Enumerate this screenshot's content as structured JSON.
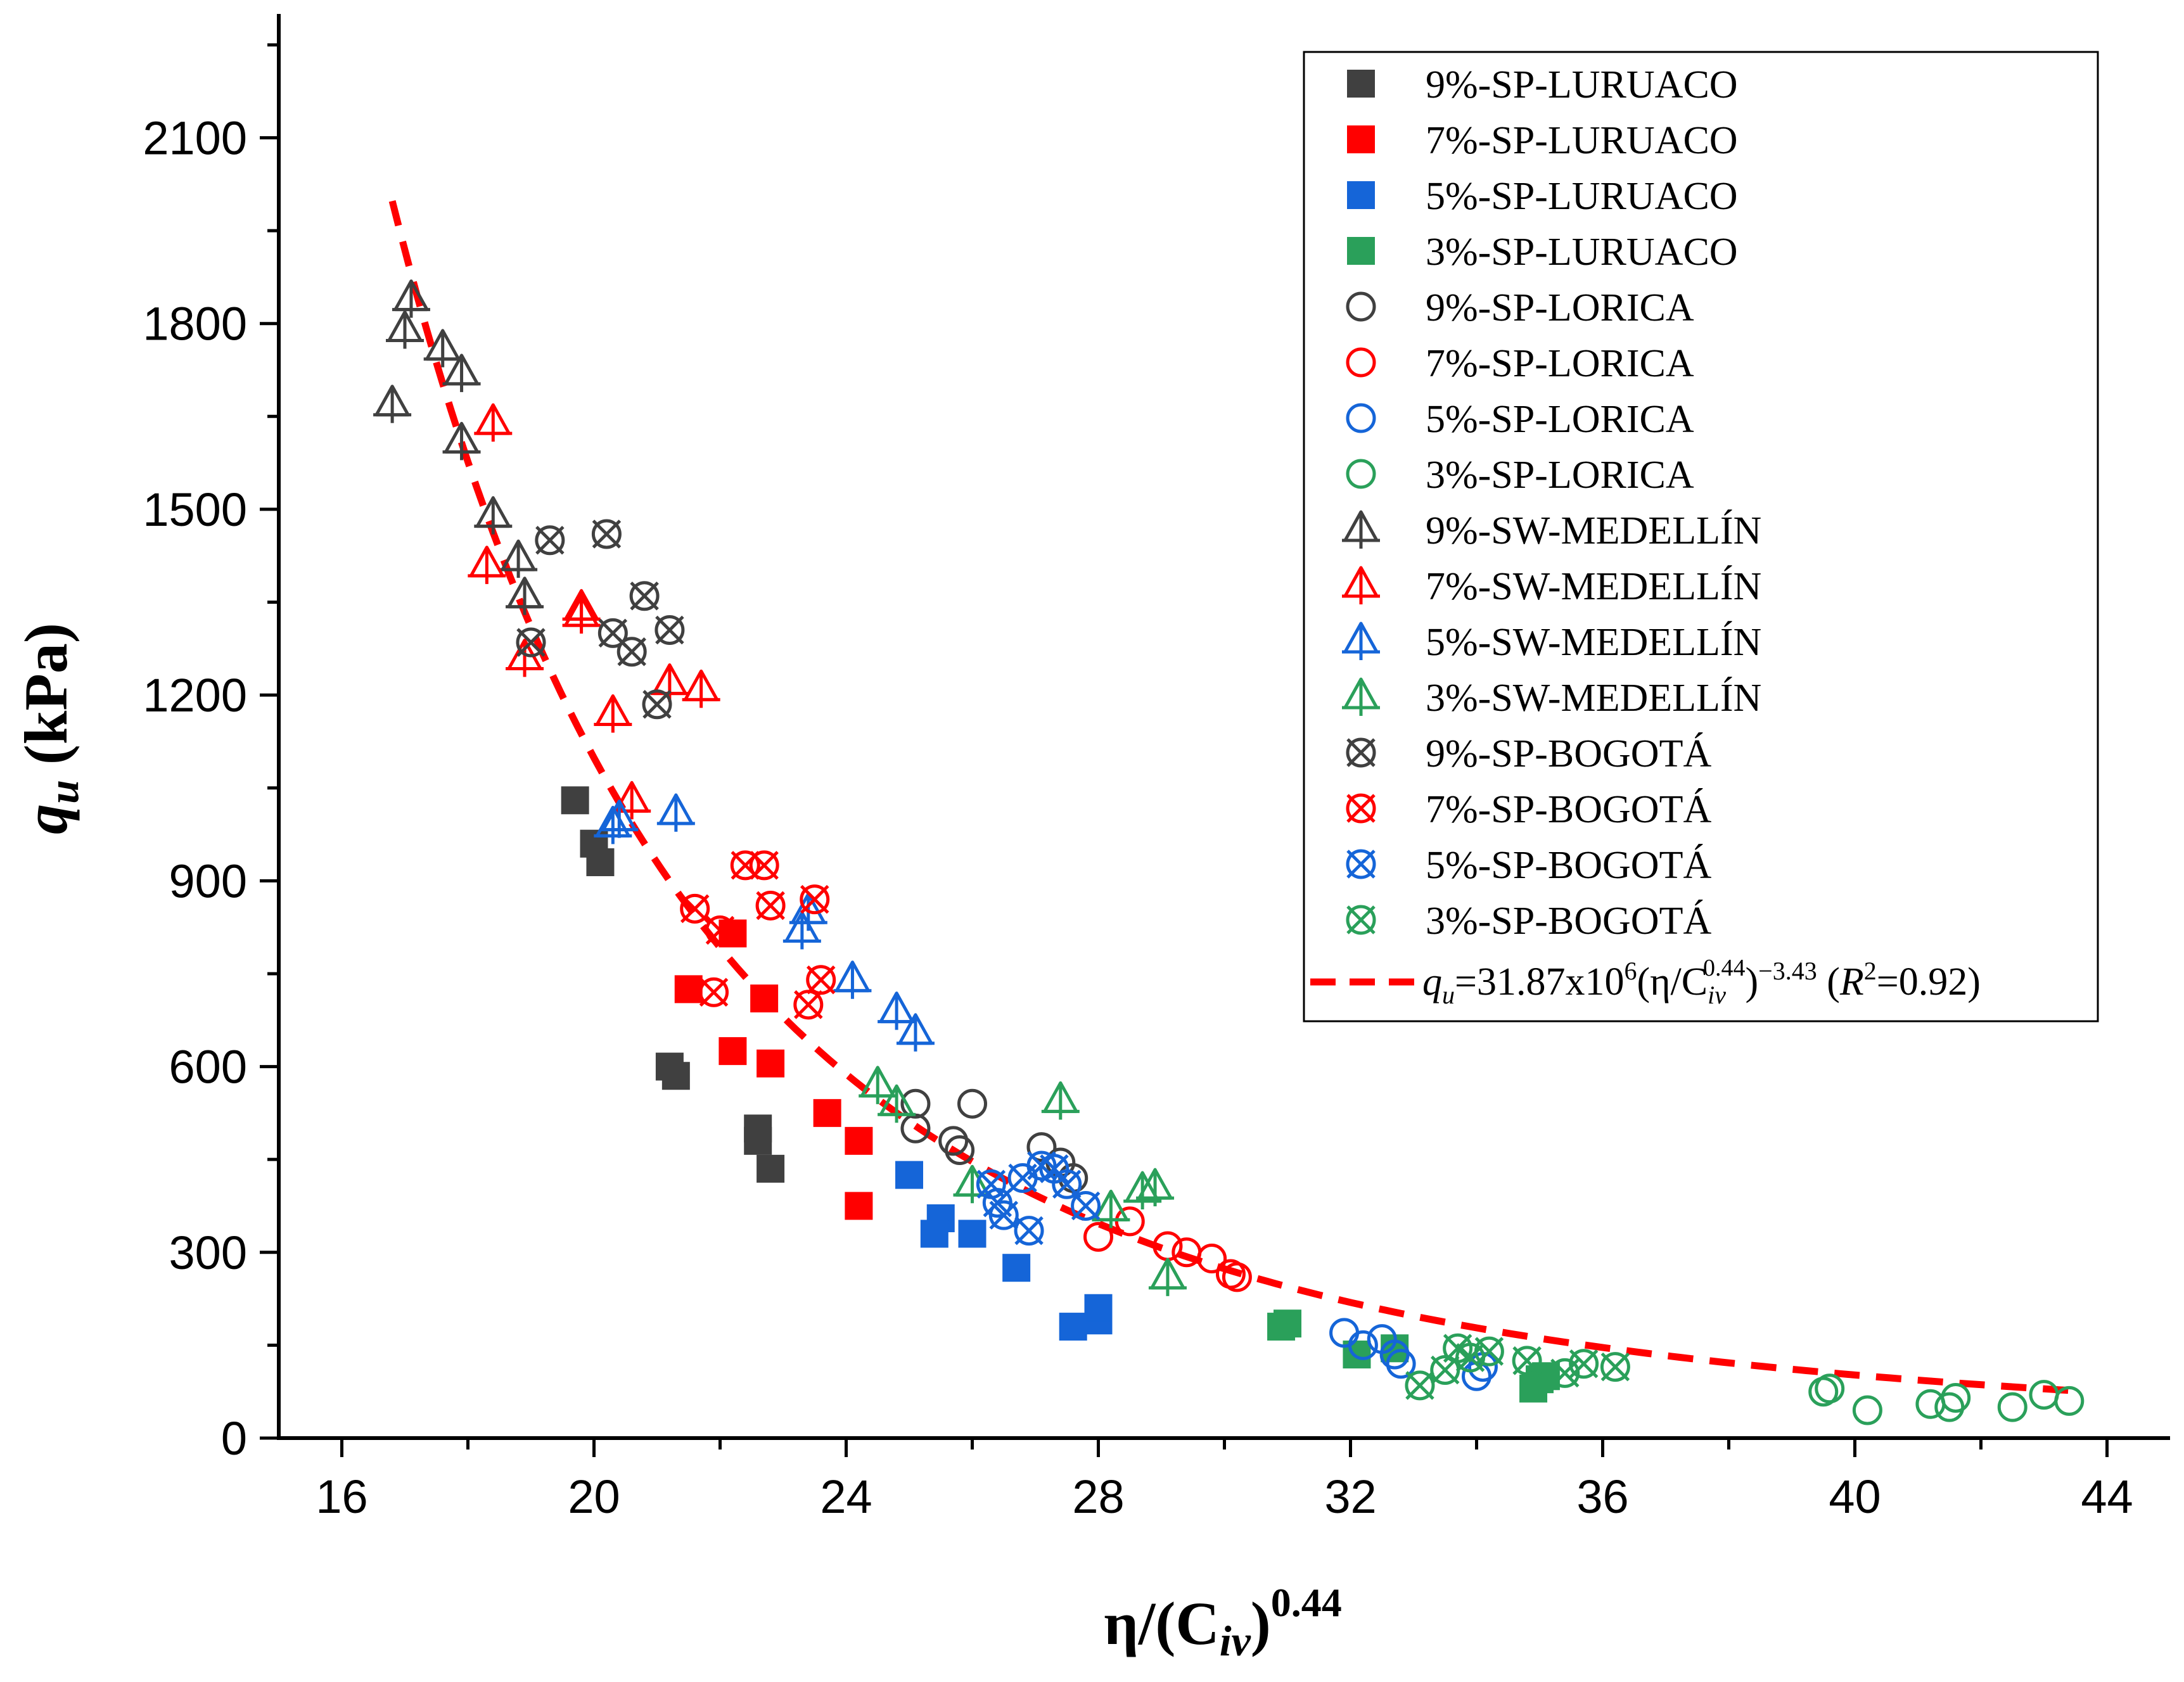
{
  "chart_data": {
    "type": "scatter",
    "title": "",
    "xlabel": "η/(C_iv)^0.44",
    "ylabel": "q_u (kPa)",
    "xlim": [
      15,
      45
    ],
    "ylim": [
      0,
      2300
    ],
    "xticks": [
      16,
      20,
      24,
      28,
      32,
      36,
      40,
      44
    ],
    "yticks": [
      0,
      300,
      600,
      900,
      1200,
      1500,
      1800,
      2100
    ],
    "xtick_labels": [
      "16",
      "20",
      "24",
      "28",
      "32",
      "36",
      "40",
      "44"
    ],
    "ytick_labels": [
      "0",
      "300",
      "600",
      "900",
      "1200",
      "1500",
      "1800",
      "2100"
    ],
    "legend_position": "top-right",
    "colors": {
      "dark": "#404040",
      "red": "#ff0000",
      "blue": "#1565d8",
      "green": "#2aa05a"
    },
    "series": [
      {
        "name": "9%-SP-LURUACO",
        "marker": "square",
        "color": "dark",
        "points": [
          [
            19.7,
            1030
          ],
          [
            20.0,
            960
          ],
          [
            20.1,
            930
          ],
          [
            21.2,
            600
          ],
          [
            21.3,
            585
          ],
          [
            22.6,
            500
          ],
          [
            22.6,
            480
          ],
          [
            22.8,
            435
          ]
        ]
      },
      {
        "name": "7%-SP-LURUACO",
        "marker": "square",
        "color": "red",
        "points": [
          [
            21.5,
            725
          ],
          [
            22.2,
            815
          ],
          [
            22.2,
            625
          ],
          [
            22.7,
            710
          ],
          [
            22.8,
            605
          ],
          [
            23.7,
            525
          ],
          [
            24.2,
            480
          ],
          [
            24.2,
            375
          ]
        ]
      },
      {
        "name": "5%-SP-LURUACO",
        "marker": "square",
        "color": "blue",
        "points": [
          [
            25.0,
            425
          ],
          [
            25.5,
            355
          ],
          [
            25.4,
            330
          ],
          [
            26.0,
            330
          ],
          [
            26.7,
            275
          ],
          [
            27.6,
            180
          ],
          [
            28.0,
            190
          ],
          [
            28.0,
            210
          ]
        ]
      },
      {
        "name": "3%-SP-LURUACO",
        "marker": "square",
        "color": "green",
        "points": [
          [
            30.9,
            180
          ],
          [
            31.0,
            185
          ],
          [
            32.1,
            135
          ],
          [
            32.7,
            145
          ],
          [
            34.9,
            80
          ],
          [
            35.0,
            95
          ],
          [
            35.1,
            100
          ]
        ]
      },
      {
        "name": "9%-SP-LORICA",
        "marker": "circle",
        "color": "dark",
        "points": [
          [
            25.1,
            540
          ],
          [
            25.1,
            500
          ],
          [
            25.7,
            480
          ],
          [
            25.8,
            465
          ],
          [
            26.0,
            540
          ],
          [
            27.1,
            470
          ],
          [
            27.4,
            445
          ],
          [
            27.6,
            420
          ]
        ]
      },
      {
        "name": "7%-SP-LORICA",
        "marker": "circle",
        "color": "red",
        "points": [
          [
            28.0,
            325
          ],
          [
            28.5,
            350
          ],
          [
            29.1,
            310
          ],
          [
            29.4,
            300
          ],
          [
            29.8,
            290
          ],
          [
            30.1,
            265
          ],
          [
            30.2,
            260
          ]
        ]
      },
      {
        "name": "5%-SP-LORICA",
        "marker": "circle",
        "color": "blue",
        "points": [
          [
            31.9,
            170
          ],
          [
            32.2,
            150
          ],
          [
            32.5,
            160
          ],
          [
            32.7,
            135
          ],
          [
            32.8,
            120
          ],
          [
            34.0,
            100
          ],
          [
            34.1,
            115
          ]
        ]
      },
      {
        "name": "3%-SP-LORICA",
        "marker": "circle",
        "color": "green",
        "points": [
          [
            39.5,
            75
          ],
          [
            39.6,
            80
          ],
          [
            40.2,
            45
          ],
          [
            41.2,
            55
          ],
          [
            41.5,
            50
          ],
          [
            41.6,
            65
          ],
          [
            42.5,
            50
          ],
          [
            43.0,
            70
          ],
          [
            43.4,
            60
          ]
        ]
      },
      {
        "name": "9%-SW-MEDELLÍN",
        "marker": "triangle-cross",
        "color": "dark",
        "points": [
          [
            16.8,
            1670
          ],
          [
            17.0,
            1790
          ],
          [
            17.1,
            1840
          ],
          [
            17.6,
            1760
          ],
          [
            17.9,
            1720
          ],
          [
            17.9,
            1610
          ],
          [
            18.4,
            1490
          ],
          [
            18.8,
            1420
          ],
          [
            18.9,
            1360
          ]
        ]
      },
      {
        "name": "7%-SW-MEDELLÍN",
        "marker": "triangle-cross",
        "color": "red",
        "points": [
          [
            18.3,
            1410
          ],
          [
            18.4,
            1640
          ],
          [
            18.9,
            1260
          ],
          [
            19.8,
            1340
          ],
          [
            19.8,
            1330
          ],
          [
            20.3,
            1170
          ],
          [
            20.6,
            1030
          ],
          [
            21.2,
            1220
          ],
          [
            21.7,
            1210
          ]
        ]
      },
      {
        "name": "5%-SW-MEDELLÍN",
        "marker": "triangle-cross",
        "color": "blue",
        "points": [
          [
            20.3,
            990
          ],
          [
            20.4,
            1000
          ],
          [
            21.3,
            1010
          ],
          [
            23.3,
            820
          ],
          [
            23.4,
            850
          ],
          [
            24.1,
            740
          ],
          [
            24.8,
            690
          ],
          [
            25.1,
            655
          ]
        ]
      },
      {
        "name": "3%-SW-MEDELLÍN",
        "marker": "triangle-cross",
        "color": "green",
        "points": [
          [
            24.5,
            570
          ],
          [
            24.8,
            540
          ],
          [
            26.0,
            410
          ],
          [
            27.4,
            545
          ],
          [
            28.2,
            370
          ],
          [
            28.7,
            400
          ],
          [
            28.9,
            405
          ],
          [
            29.1,
            260
          ]
        ]
      },
      {
        "name": "9%-SP-BOGOTÁ",
        "marker": "circle-x",
        "color": "dark",
        "points": [
          [
            19.0,
            1285
          ],
          [
            19.3,
            1450
          ],
          [
            20.2,
            1460
          ],
          [
            20.3,
            1300
          ],
          [
            20.6,
            1270
          ],
          [
            20.8,
            1360
          ],
          [
            21.0,
            1185
          ],
          [
            21.2,
            1305
          ]
        ]
      },
      {
        "name": "7%-SP-BOGOTÁ",
        "marker": "circle-x",
        "color": "red",
        "points": [
          [
            21.6,
            855
          ],
          [
            21.9,
            720
          ],
          [
            22.0,
            820
          ],
          [
            22.4,
            925
          ],
          [
            22.7,
            925
          ],
          [
            22.8,
            860
          ],
          [
            23.4,
            700
          ],
          [
            23.5,
            870
          ],
          [
            23.6,
            740
          ]
        ]
      },
      {
        "name": "5%-SP-BOGOTÁ",
        "marker": "circle-x",
        "color": "blue",
        "points": [
          [
            26.3,
            410
          ],
          [
            26.4,
            380
          ],
          [
            26.5,
            360
          ],
          [
            26.8,
            420
          ],
          [
            26.9,
            335
          ],
          [
            27.1,
            440
          ],
          [
            27.3,
            435
          ],
          [
            27.5,
            410
          ],
          [
            27.8,
            375
          ]
        ]
      },
      {
        "name": "3%-SP-BOGOTÁ",
        "marker": "circle-x",
        "color": "green",
        "points": [
          [
            33.1,
            85
          ],
          [
            33.5,
            110
          ],
          [
            33.7,
            145
          ],
          [
            33.9,
            130
          ],
          [
            34.2,
            140
          ],
          [
            34.8,
            125
          ],
          [
            35.4,
            105
          ],
          [
            35.7,
            120
          ],
          [
            36.2,
            115
          ]
        ]
      }
    ],
    "fit": {
      "legend_label": "q_u=31.87x10^6(η/C_iv^0.44)^−3.43  (R^2=0.92)",
      "coefficient": 31870000,
      "exponent": -3.43,
      "r2": 0.92,
      "x_range": [
        16.8,
        43.5
      ],
      "color": "red",
      "style": "dashed"
    }
  }
}
